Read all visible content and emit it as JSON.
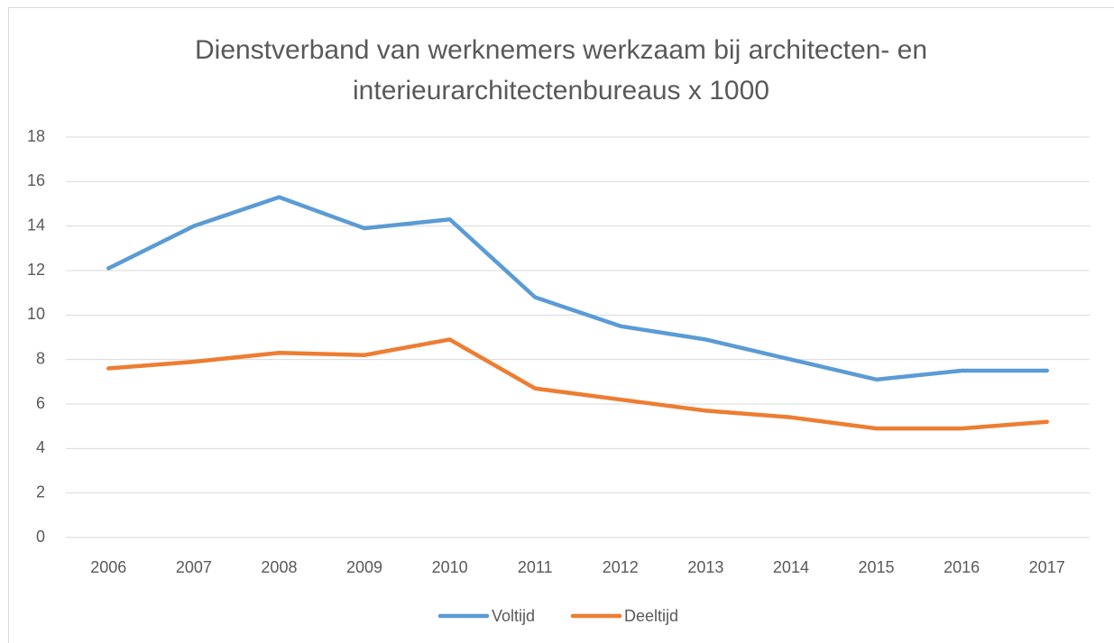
{
  "chart_data": {
    "type": "line",
    "title": [
      "Dienstverband van werknemers werkzaam bij architecten- en",
      "interieurarchitectenbureaus x 1000"
    ],
    "categories": [
      "2006",
      "2007",
      "2008",
      "2009",
      "2010",
      "2011",
      "2012",
      "2013",
      "2014",
      "2015",
      "2016",
      "2017"
    ],
    "series": [
      {
        "name": "Voltijd",
        "color": "#5b9bd5",
        "values": [
          12.1,
          14.0,
          15.3,
          13.9,
          14.3,
          10.8,
          9.5,
          8.9,
          8.0,
          7.1,
          7.5,
          7.5
        ]
      },
      {
        "name": "Deeltijd",
        "color": "#ed7d31",
        "values": [
          7.6,
          7.9,
          8.3,
          8.2,
          8.9,
          6.7,
          6.2,
          5.7,
          5.4,
          4.9,
          4.9,
          5.2
        ]
      }
    ],
    "ylim": [
      0,
      18
    ],
    "yticks": [
      0,
      2,
      4,
      6,
      8,
      10,
      12,
      14,
      16,
      18
    ],
    "grid": true,
    "legend": "bottom"
  }
}
